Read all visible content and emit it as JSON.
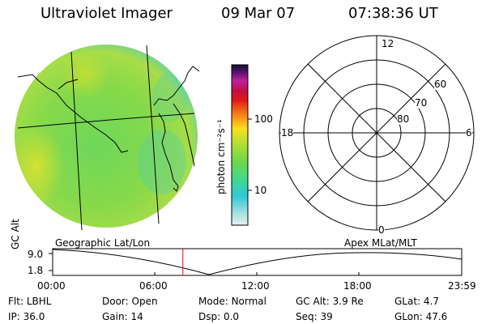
{
  "header": {
    "instrument": "Ultraviolet Imager",
    "date": "09 Mar 07",
    "time": "07:38:36 UT"
  },
  "colorbar": {
    "unit_label": "photon cm⁻²s⁻¹",
    "ticks": [
      {
        "label": "100",
        "value": 100
      },
      {
        "label": "10",
        "value": 10
      }
    ]
  },
  "polar_plot": {
    "mlt_labels": [
      {
        "label": "12",
        "pos": "top"
      },
      {
        "label": "18",
        "pos": "left"
      },
      {
        "label": "6",
        "pos": "right"
      },
      {
        "label": "0",
        "pos": "bottom"
      }
    ],
    "mlat_labels": [
      "60",
      "70",
      "80"
    ]
  },
  "timeline": {
    "left_caption": "Geographic Lat/Lon",
    "right_caption": "Apex MLat/MLT",
    "ylabel": "GC Alt",
    "y_ticks": [
      "9.0",
      "1.8"
    ],
    "x_ticks": [
      "00:00",
      "06:00",
      "12:00",
      "18:00",
      "23:59"
    ],
    "current_time_hours": 7.64,
    "marker_color": "#ff0000"
  },
  "status": {
    "row1": [
      {
        "key": "Flt:",
        "value": "LBHL"
      },
      {
        "key": "Door:",
        "value": "Open"
      },
      {
        "key": "Mode:",
        "value": "Normal"
      },
      {
        "key": "GC Alt:",
        "value": "3.9 Re"
      },
      {
        "key": "GLat:",
        "value": "4.7"
      }
    ],
    "row2": [
      {
        "key": "IP:",
        "value": "36.0"
      },
      {
        "key": "Gain:",
        "value": "14"
      },
      {
        "key": "Dsp:",
        "value": "0.0"
      },
      {
        "key": "Seq:",
        "value": "39"
      },
      {
        "key": "GLon:",
        "value": "47.6"
      }
    ]
  }
}
